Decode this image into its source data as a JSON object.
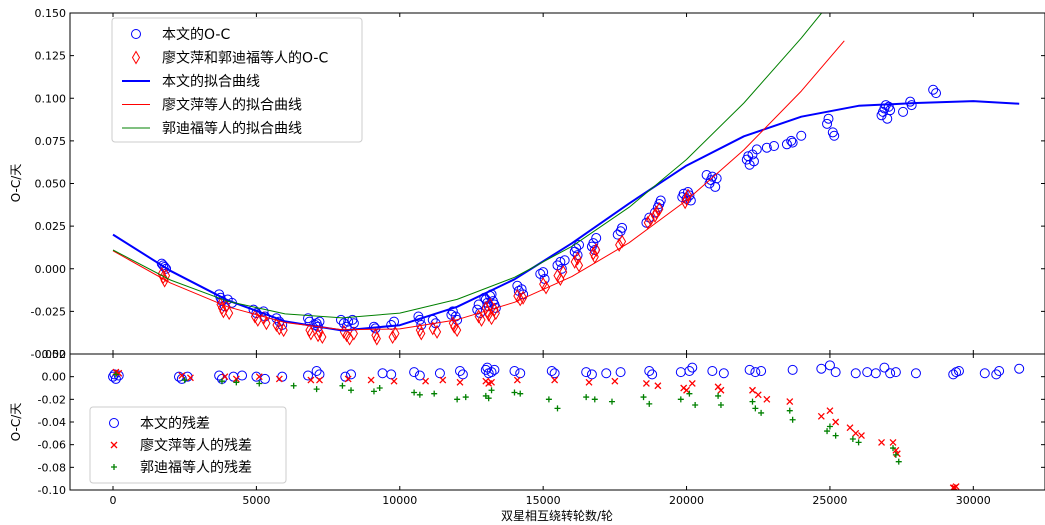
{
  "chart_data": [
    {
      "type": "scatter",
      "panel": "top",
      "xlabel": "",
      "ylabel": "O-C/天",
      "xlim": [
        -1500,
        32500
      ],
      "ylim": [
        -0.05,
        0.15
      ],
      "yticks": [
        -0.05,
        -0.025,
        0.0,
        0.025,
        0.05,
        0.075,
        0.1,
        0.125,
        0.15
      ],
      "ytick_labels": [
        "-0.050",
        "-0.025",
        "0.000",
        "0.025",
        "0.050",
        "0.075",
        "0.100",
        "0.125",
        "0.150"
      ],
      "legend": {
        "placement": "upper-left",
        "entries": [
          {
            "label": "本文的O-C",
            "marker": "circle",
            "color": "#0000ff"
          },
          {
            "label": "廖文萍和郭迪福等人的O-C",
            "marker": "diamond",
            "color": "#ff0000"
          },
          {
            "label": "本文的拟合曲线",
            "marker": "line-thick",
            "color": "#0000ff"
          },
          {
            "label": "廖文萍等人的拟合曲线",
            "marker": "line",
            "color": "#ff0000"
          },
          {
            "label": "郭迪福等人的拟合曲线",
            "marker": "line",
            "color": "#008000"
          }
        ]
      },
      "series": [
        {
          "name": "本文的O-C",
          "kind": "scatter",
          "marker": "circle",
          "color": "#0000ff",
          "x": [
            1700,
            1750,
            1800,
            1850,
            3700,
            3750,
            3800,
            3900,
            4000,
            4150,
            4900,
            5000,
            5250,
            5300,
            5700,
            5800,
            5900,
            6800,
            6850,
            7050,
            7100,
            7150,
            7200,
            7950,
            8050,
            8150,
            8200,
            8350,
            8400,
            9100,
            9150,
            9700,
            9800,
            10650,
            10700,
            10750,
            11150,
            11250,
            11800,
            11850,
            11950,
            12000,
            12700,
            12750,
            12800,
            12950,
            13000,
            13050,
            13100,
            13150,
            13200,
            13250,
            13300,
            13350,
            14100,
            14150,
            14250,
            14300,
            14900,
            15000,
            15050,
            15500,
            15600,
            15650,
            15750,
            16100,
            16150,
            16200,
            16250,
            16700,
            16750,
            16800,
            16850,
            17600,
            17700,
            17750,
            18600,
            18700,
            18900,
            19000,
            19050,
            19100,
            19850,
            19900,
            20000,
            20050,
            20100,
            20150,
            20700,
            20800,
            20850,
            20900,
            21000,
            21050,
            22100,
            22150,
            22200,
            22300,
            22350,
            22450,
            22800,
            23050,
            23500,
            23650,
            23700,
            24000,
            24900,
            24950,
            25100,
            25150,
            26800,
            26850,
            26900,
            26950,
            27000,
            27050,
            27100,
            27550,
            27800,
            27850,
            28600,
            28700
          ],
          "y": [
            0.003,
            0.002,
            0.001,
            0.0,
            -0.015,
            -0.017,
            -0.019,
            -0.022,
            -0.018,
            -0.02,
            -0.024,
            -0.026,
            -0.025,
            -0.028,
            -0.029,
            -0.031,
            -0.033,
            -0.029,
            -0.031,
            -0.033,
            -0.032,
            -0.034,
            -0.031,
            -0.03,
            -0.032,
            -0.034,
            -0.031,
            -0.03,
            -0.032,
            -0.034,
            -0.035,
            -0.033,
            -0.031,
            -0.028,
            -0.03,
            -0.033,
            -0.03,
            -0.032,
            -0.027,
            -0.025,
            -0.028,
            -0.03,
            -0.024,
            -0.021,
            -0.026,
            -0.017,
            -0.018,
            -0.02,
            -0.022,
            -0.016,
            -0.015,
            -0.019,
            -0.021,
            -0.023,
            -0.01,
            -0.013,
            -0.012,
            -0.015,
            -0.003,
            -0.002,
            -0.006,
            0.002,
            0.004,
            0.0,
            0.005,
            0.01,
            0.012,
            0.008,
            0.014,
            0.013,
            0.015,
            0.011,
            0.018,
            0.02,
            0.022,
            0.024,
            0.027,
            0.03,
            0.033,
            0.036,
            0.038,
            0.04,
            0.042,
            0.044,
            0.041,
            0.045,
            0.043,
            0.04,
            0.055,
            0.05,
            0.052,
            0.054,
            0.048,
            0.053,
            0.064,
            0.066,
            0.061,
            0.067,
            0.063,
            0.07,
            0.071,
            0.072,
            0.073,
            0.075,
            0.074,
            0.078,
            0.085,
            0.088,
            0.08,
            0.078,
            0.09,
            0.092,
            0.094,
            0.096,
            0.088,
            0.095,
            0.093,
            0.092,
            0.098,
            0.096,
            0.105,
            0.103
          ]
        },
        {
          "name": "廖文萍和郭迪福等人的O-C",
          "kind": "scatter",
          "marker": "diamond",
          "color": "#ff0000",
          "x": [
            1700,
            1750,
            1800,
            1850,
            3750,
            3800,
            3850,
            3950,
            4050,
            4950,
            5050,
            5250,
            5350,
            5700,
            5800,
            5950,
            6850,
            6900,
            7150,
            7200,
            7300,
            8050,
            8150,
            8250,
            8400,
            9150,
            9200,
            9750,
            9850,
            10700,
            10750,
            11150,
            11300,
            11850,
            11900,
            12000,
            12750,
            12850,
            13000,
            13050,
            13100,
            13150,
            13200,
            13300,
            13350,
            14100,
            14200,
            14300,
            15000,
            15100,
            15500,
            15600,
            15700,
            16100,
            16200,
            16250,
            16750,
            16800,
            16850,
            17650,
            17750,
            18650,
            18750,
            18900,
            18950,
            19050,
            19950,
            20000,
            20050
          ],
          "y": [
            -0.003,
            -0.005,
            -0.007,
            -0.004,
            -0.021,
            -0.023,
            -0.025,
            -0.022,
            -0.026,
            -0.028,
            -0.03,
            -0.029,
            -0.032,
            -0.033,
            -0.035,
            -0.036,
            -0.036,
            -0.038,
            -0.039,
            -0.037,
            -0.04,
            -0.037,
            -0.039,
            -0.041,
            -0.038,
            -0.039,
            -0.041,
            -0.04,
            -0.038,
            -0.036,
            -0.038,
            -0.035,
            -0.037,
            -0.032,
            -0.034,
            -0.036,
            -0.028,
            -0.03,
            -0.023,
            -0.025,
            -0.027,
            -0.021,
            -0.029,
            -0.024,
            -0.026,
            -0.016,
            -0.018,
            -0.017,
            -0.009,
            -0.011,
            -0.004,
            -0.006,
            -0.002,
            0.004,
            0.006,
            0.002,
            0.009,
            0.007,
            0.011,
            0.014,
            0.016,
            0.027,
            0.029,
            0.031,
            0.033,
            0.035,
            0.039,
            0.041,
            0.043
          ]
        },
        {
          "name": "本文的拟合曲线",
          "kind": "line",
          "color": "#0000ff",
          "line_width": 2,
          "x": [
            0,
            2000,
            4000,
            6000,
            8000,
            10000,
            12000,
            14000,
            16000,
            18000,
            20000,
            22000,
            24000,
            26000,
            28000,
            30000,
            31600
          ],
          "y": [
            0.02,
            -0.0012,
            -0.0185,
            -0.0309,
            -0.0362,
            -0.0331,
            -0.0223,
            -0.0062,
            0.0149,
            0.0383,
            0.0605,
            0.0777,
            0.0892,
            0.0956,
            0.0972,
            0.0983,
            0.0968
          ]
        },
        {
          "name": "廖文萍等人的拟合曲线",
          "kind": "line",
          "color": "#ff0000",
          "line_width": 1,
          "x": [
            0,
            2000,
            4000,
            6000,
            8000,
            10000,
            12000,
            14000,
            16000,
            18000,
            20000,
            22000,
            24000,
            25500
          ],
          "y": [
            0.0105,
            -0.0083,
            -0.0223,
            -0.0315,
            -0.0358,
            -0.0353,
            -0.0299,
            -0.0197,
            -0.0046,
            0.0153,
            0.0401,
            0.0697,
            0.1042,
            0.1337
          ]
        },
        {
          "name": "郭迪福等人的拟合曲线",
          "kind": "line",
          "color": "#008000",
          "line_width": 1,
          "x": [
            0,
            2000,
            4000,
            6000,
            8000,
            10000,
            12000,
            14000,
            16000,
            18000,
            20000,
            22000,
            24000,
            25000
          ],
          "y": [
            0.011,
            -0.0066,
            -0.0191,
            -0.0265,
            -0.0288,
            -0.026,
            -0.018,
            -0.005,
            0.0131,
            0.0361,
            0.0641,
            0.0972,
            0.1353,
            0.156
          ]
        }
      ]
    },
    {
      "type": "scatter",
      "panel": "bottom",
      "xlabel": "双星相互绕转轮数/轮",
      "ylabel": "O-C/天",
      "xlim": [
        -1500,
        32500
      ],
      "ylim": [
        -0.1,
        0.02
      ],
      "xticks": [
        0,
        5000,
        10000,
        15000,
        20000,
        25000,
        30000
      ],
      "xtick_labels": [
        "0",
        "5000",
        "10000",
        "15000",
        "20000",
        "25000",
        "30000"
      ],
      "yticks": [
        -0.1,
        -0.08,
        -0.06,
        -0.04,
        -0.02,
        0.0,
        0.02
      ],
      "ytick_labels": [
        "-0.10",
        "-0.08",
        "-0.06",
        "-0.04",
        "-0.02",
        "0.00",
        "0.02"
      ],
      "legend": {
        "placement": "lower-left",
        "entries": [
          {
            "label": "本文的残差",
            "marker": "circle",
            "color": "#0000ff"
          },
          {
            "label": "廖文萍等人的残差",
            "marker": "x",
            "color": "#ff0000"
          },
          {
            "label": "郭迪福等人的残差",
            "marker": "plus",
            "color": "#008000"
          }
        ]
      },
      "series": [
        {
          "name": "本文的残差",
          "kind": "scatter",
          "marker": "circle",
          "color": "#0000ff",
          "x": [
            0,
            50,
            100,
            200,
            2300,
            2400,
            2600,
            3700,
            3800,
            4200,
            4500,
            5000,
            5300,
            5900,
            6800,
            7100,
            7200,
            8100,
            8300,
            9400,
            9700,
            10500,
            10700,
            11400,
            12100,
            12200,
            13000,
            13050,
            13100,
            13200,
            13300,
            14000,
            14200,
            15300,
            15400,
            16500,
            16700,
            17200,
            17700,
            18700,
            18800,
            19800,
            20100,
            20200,
            20900,
            21300,
            22200,
            22400,
            22600,
            23700,
            24700,
            25000,
            25200,
            25900,
            26300,
            26600,
            26900,
            27100,
            27300,
            28000,
            29300,
            29400,
            29500,
            30400,
            30800,
            30900,
            31600
          ],
          "y": [
            0.0,
            0.002,
            -0.002,
            0.001,
            0.0,
            -0.002,
            0.0,
            0.001,
            -0.002,
            0.0,
            0.001,
            0.0,
            -0.002,
            0.0,
            0.001,
            0.005,
            0.002,
            0.0,
            0.002,
            0.003,
            0.002,
            0.004,
            0.001,
            0.003,
            0.005,
            0.002,
            0.006,
            0.008,
            0.003,
            0.004,
            0.006,
            0.005,
            0.003,
            0.005,
            0.003,
            0.004,
            0.002,
            0.003,
            0.004,
            0.005,
            0.002,
            0.004,
            0.005,
            0.008,
            0.005,
            0.003,
            0.006,
            0.004,
            0.005,
            0.006,
            0.007,
            0.01,
            0.004,
            0.003,
            0.004,
            0.003,
            0.008,
            0.003,
            0.004,
            0.003,
            0.002,
            0.004,
            0.005,
            0.003,
            0.002,
            0.005,
            0.007
          ]
        },
        {
          "name": "廖文萍等人的残差",
          "kind": "scatter",
          "marker": "x",
          "color": "#ff0000",
          "x": [
            100,
            200,
            2400,
            2700,
            3900,
            4300,
            5100,
            5800,
            6900,
            7200,
            8200,
            9000,
            9800,
            10900,
            11500,
            12100,
            13000,
            13100,
            13200,
            14100,
            15400,
            16600,
            17500,
            18600,
            19000,
            19900,
            20000,
            20200,
            21100,
            21200,
            22300,
            22500,
            22800,
            23600,
            24700,
            25000,
            25200,
            25700,
            25900,
            26100,
            26800,
            27200,
            27300,
            27350,
            29300,
            29350,
            29400
          ],
          "y": [
            0.004,
            0.003,
            0.001,
            -0.001,
            0.0,
            -0.002,
            0.0,
            -0.002,
            -0.003,
            -0.003,
            -0.002,
            -0.003,
            -0.004,
            -0.004,
            -0.003,
            -0.005,
            -0.004,
            -0.006,
            -0.005,
            -0.003,
            -0.003,
            -0.005,
            -0.004,
            -0.006,
            -0.008,
            -0.01,
            -0.012,
            -0.006,
            -0.009,
            -0.012,
            -0.012,
            -0.016,
            -0.02,
            -0.022,
            -0.035,
            -0.03,
            -0.04,
            -0.045,
            -0.05,
            -0.052,
            -0.058,
            -0.058,
            -0.065,
            -0.068,
            -0.098,
            -0.098,
            -0.097
          ]
        },
        {
          "name": "郭迪福等人的残差",
          "kind": "scatter",
          "marker": "plus",
          "color": "#008000",
          "x": [
            100,
            2500,
            3800,
            4300,
            5100,
            6300,
            7100,
            8000,
            8300,
            9100,
            9300,
            10500,
            10700,
            11200,
            12000,
            12300,
            13000,
            13100,
            13200,
            14000,
            14200,
            15200,
            15500,
            16500,
            16800,
            17400,
            18500,
            18700,
            19800,
            20100,
            20300,
            21100,
            21200,
            22300,
            22400,
            22600,
            23600,
            23700,
            24900,
            25000,
            25200,
            25800,
            26000,
            27200,
            27300,
            27400
          ],
          "y": [
            0.002,
            -0.003,
            -0.004,
            -0.005,
            -0.006,
            -0.008,
            -0.011,
            -0.008,
            -0.012,
            -0.013,
            -0.01,
            -0.014,
            -0.016,
            -0.015,
            -0.02,
            -0.018,
            -0.017,
            -0.019,
            -0.012,
            -0.014,
            -0.015,
            -0.02,
            -0.028,
            -0.018,
            -0.02,
            -0.022,
            -0.018,
            -0.024,
            -0.02,
            -0.015,
            -0.025,
            -0.017,
            -0.025,
            -0.022,
            -0.028,
            -0.032,
            -0.03,
            -0.038,
            -0.048,
            -0.044,
            -0.052,
            -0.055,
            -0.058,
            -0.063,
            -0.069,
            -0.075
          ]
        }
      ]
    }
  ]
}
